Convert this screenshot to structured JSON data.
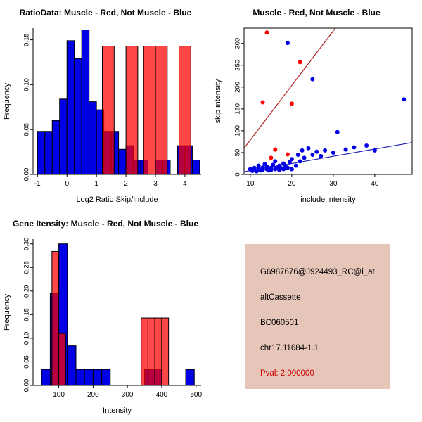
{
  "page": {
    "background": "#ffffff"
  },
  "colors": {
    "muscle_red": "#ff0000",
    "not_muscle_blue": "#0000e6",
    "red_fit_line": "#b22222",
    "blue_fit_line": "#2222b2"
  },
  "chart_data": [
    {
      "id": "ratio_histogram",
      "type": "bar",
      "subtype": "histogram",
      "title": "RatioData: Muscle - Red, Not Muscle - Blue",
      "xlabel": "Log2 Ratio Skip/Include",
      "ylabel": "Frequency",
      "xlim": [
        -1.15,
        4.55
      ],
      "ylim": [
        0,
        0.163
      ],
      "xticks": [
        -1,
        0,
        1,
        2,
        3,
        4
      ],
      "yticks": [
        0,
        0.05,
        0.1,
        0.15
      ],
      "ytick_labels": [
        "0.00",
        "0.05",
        "0.10",
        "0.15"
      ],
      "grid": false,
      "series": [
        {
          "name": "Not Muscle",
          "color": "#0000e6",
          "alpha": 1,
          "bars": [
            [
              -1.0,
              -0.75,
              0.048
            ],
            [
              -0.75,
              -0.5,
              0.048
            ],
            [
              -0.5,
              -0.25,
              0.06
            ],
            [
              -0.25,
              0,
              0.084
            ],
            [
              0,
              0.25,
              0.149
            ],
            [
              0.25,
              0.5,
              0.129
            ],
            [
              0.5,
              0.75,
              0.161
            ],
            [
              0.75,
              1.0,
              0.081
            ],
            [
              1.0,
              1.25,
              0.072
            ],
            [
              1.25,
              1.5,
              0.048
            ],
            [
              1.5,
              1.75,
              0.048
            ],
            [
              1.75,
              2.0,
              0.028
            ],
            [
              2.0,
              2.25,
              0.032
            ],
            [
              2.25,
              2.5,
              0.016
            ],
            [
              2.5,
              2.75,
              0.016
            ],
            [
              3.0,
              3.25,
              0.016
            ],
            [
              3.25,
              3.5,
              0.016
            ],
            [
              3.75,
              4.0,
              0.032
            ],
            [
              4.0,
              4.25,
              0.032
            ],
            [
              4.25,
              4.5,
              0.016
            ]
          ]
        },
        {
          "name": "Muscle",
          "color": "#ff0000",
          "alpha": 0.72,
          "bars": [
            [
              1.2,
              1.6,
              0.143
            ],
            [
              2.0,
              2.4,
              0.143
            ],
            [
              2.6,
              3.0,
              0.143
            ],
            [
              3.0,
              3.4,
              0.143
            ],
            [
              3.8,
              4.2,
              0.143
            ]
          ]
        }
      ]
    },
    {
      "id": "intensity_scatter",
      "type": "scatter",
      "title": "Muscle - Red, Not Muscle - Blue",
      "xlabel": "include intensity",
      "ylabel": "skip intensity",
      "xlim": [
        8.5,
        49
      ],
      "ylim": [
        0,
        335
      ],
      "xticks": [
        10,
        20,
        30,
        40
      ],
      "yticks": [
        0,
        50,
        100,
        150,
        200,
        250,
        300
      ],
      "grid": false,
      "series": [
        {
          "name": "Not Muscle",
          "color": "#0000e6",
          "points": [
            [
              10,
              12
            ],
            [
              10.5,
              8
            ],
            [
              11,
              15
            ],
            [
              11,
              10
            ],
            [
              11.5,
              7
            ],
            [
              12,
              13
            ],
            [
              12,
              20
            ],
            [
              12.5,
              9
            ],
            [
              13,
              16
            ],
            [
              13,
              10
            ],
            [
              13.5,
              24
            ],
            [
              14,
              12
            ],
            [
              14,
              18
            ],
            [
              14.5,
              9
            ],
            [
              15,
              15
            ],
            [
              15,
              10
            ],
            [
              15.5,
              22
            ],
            [
              16,
              12
            ],
            [
              16,
              30
            ],
            [
              16.5,
              16
            ],
            [
              17,
              10
            ],
            [
              17,
              20
            ],
            [
              17.5,
              14
            ],
            [
              18,
              25
            ],
            [
              18,
              12
            ],
            [
              18.5,
              18
            ],
            [
              19,
              301
            ],
            [
              19,
              15
            ],
            [
              19.5,
              28
            ],
            [
              20,
              12
            ],
            [
              20,
              35
            ],
            [
              21,
              20
            ],
            [
              21.5,
              45
            ],
            [
              22,
              30
            ],
            [
              22.5,
              55
            ],
            [
              23,
              38
            ],
            [
              24,
              60
            ],
            [
              25,
              218
            ],
            [
              25,
              45
            ],
            [
              26,
              52
            ],
            [
              27,
              42
            ],
            [
              28,
              55
            ],
            [
              30,
              50
            ],
            [
              31,
              97
            ],
            [
              33,
              57
            ],
            [
              35,
              62
            ],
            [
              38,
              66
            ],
            [
              40,
              55
            ],
            [
              47,
              172
            ]
          ]
        },
        {
          "name": "Muscle",
          "color": "#ff0000",
          "points": [
            [
              14,
              325
            ],
            [
              22,
              257
            ],
            [
              13,
              165
            ],
            [
              20,
              162
            ],
            [
              16,
              57
            ],
            [
              19,
              46
            ],
            [
              15,
              38
            ]
          ]
        }
      ],
      "fit_lines": [
        {
          "name": "muscle-fit",
          "color": "#b22222",
          "x1": 8.5,
          "y1": 60,
          "x2": 30.5,
          "y2": 335
        },
        {
          "name": "not-muscle-fit",
          "color": "#2222b2",
          "x1": 8.5,
          "y1": 6,
          "x2": 49,
          "y2": 73
        }
      ]
    },
    {
      "id": "gene_intensity_histogram",
      "type": "bar",
      "subtype": "histogram",
      "title": "Gene Itensity: Muscle - Red, Not Muscle - Blue",
      "xlabel": "Intensity",
      "ylabel": "Frequency",
      "xlim": [
        25,
        515
      ],
      "ylim": [
        0,
        0.31
      ],
      "xticks": [
        100,
        200,
        300,
        400,
        500
      ],
      "yticks": [
        0,
        0.05,
        0.1,
        0.15,
        0.2,
        0.25,
        0.3
      ],
      "ytick_labels": [
        "0.00",
        "0.05",
        "0.10",
        "0.15",
        "0.20",
        "0.25",
        "0.30"
      ],
      "grid": false,
      "series": [
        {
          "name": "Not Muscle",
          "color": "#0000e6",
          "alpha": 1,
          "bars": [
            [
              50,
              75,
              0.034
            ],
            [
              75,
              100,
              0.195
            ],
            [
              100,
              125,
              0.3
            ],
            [
              125,
              150,
              0.084
            ],
            [
              150,
              175,
              0.034
            ],
            [
              175,
              200,
              0.034
            ],
            [
              200,
              225,
              0.034
            ],
            [
              225,
              250,
              0.034
            ],
            [
              350,
              375,
              0.034
            ],
            [
              375,
              400,
              0.034
            ],
            [
              470,
              495,
              0.034
            ]
          ]
        },
        {
          "name": "Muscle",
          "color": "#ff0000",
          "alpha": 0.72,
          "bars": [
            [
              80,
              100,
              0.284
            ],
            [
              100,
              120,
              0.11
            ],
            [
              340,
              360,
              0.143
            ],
            [
              360,
              380,
              0.143
            ],
            [
              380,
              400,
              0.143
            ],
            [
              400,
              420,
              0.143
            ]
          ]
        }
      ]
    }
  ],
  "info_box": {
    "background": "#e7c6ba",
    "lines": [
      {
        "text": "G6987676@J924493_RC@i_at",
        "color": "#000000"
      },
      {
        "text": "altCassette",
        "color": "#000000"
      },
      {
        "text": "BC060501",
        "color": "#000000"
      },
      {
        "text": "chr17.11684-1.1",
        "color": "#000000"
      },
      {
        "text": "Pval: 2.000000",
        "color": "#cc0000"
      }
    ]
  }
}
